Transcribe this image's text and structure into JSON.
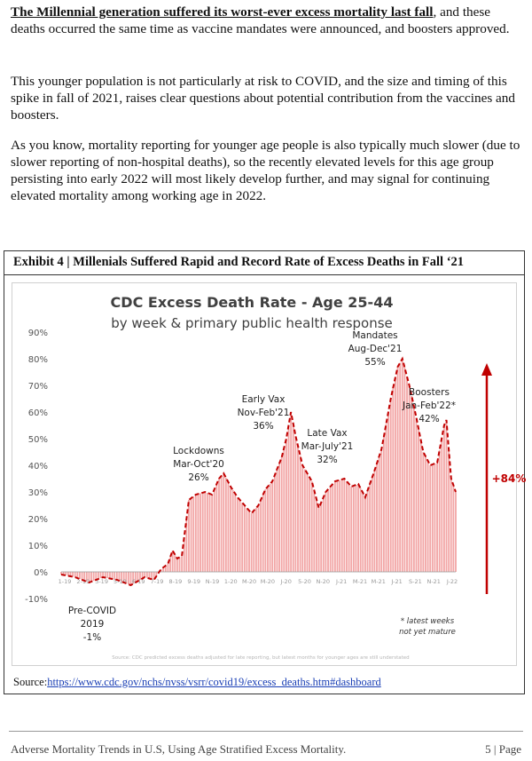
{
  "paragraphs": {
    "p1_lead": "The Millennial generation suffered its worst-ever excess mortality last fall",
    "p1_rest": ", and these deaths occurred the same time as vaccine mandates were announced, and boosters approved.",
    "p2": "This younger population is not particularly at risk to COVID, and the size and timing of this spike in fall of 2021, raises clear questions about potential contribution from the vaccines and boosters.",
    "p3": "As you know, mortality reporting for younger age people is also typically much slower (due to slower reporting of non-hospital deaths), so the recently elevated levels for this age group persisting into early 2022 will most likely develop further, and may signal for continuing elevated mortality among working age in 2022."
  },
  "exhibit": {
    "title": "Exhibit 4 | Millenials Suffered Rapid and Record Rate of Excess Deaths in Fall ‘21",
    "source_label": "Source:",
    "source_url": "https://www.cdc.gov/nchs/nvss/vsrr/covid19/excess_deaths.htm#dashboard"
  },
  "chart_data": {
    "type": "bar",
    "title": "CDC Excess Death Rate - Age 25-44",
    "subtitle": "by week & primary public health response",
    "xlabel": "",
    "ylabel": "",
    "ylim": [
      -10,
      90
    ],
    "yticks": [
      "90%",
      "80%",
      "70%",
      "60%",
      "50%",
      "40%",
      "30%",
      "20%",
      "10%",
      "0%",
      "-10%"
    ],
    "ytick_values": [
      90,
      80,
      70,
      60,
      50,
      40,
      30,
      20,
      10,
      0,
      -10
    ],
    "xtick_labels": [
      "1-19",
      "2-19",
      "3-19",
      "5-19",
      "6-19",
      "7-19",
      "8-19",
      "9-19",
      "N-19",
      "1-20",
      "M-20",
      "M-20",
      "J-20",
      "5-20",
      "N-20",
      "J-21",
      "M-21",
      "M-21",
      "J-21",
      "S-21",
      "N-21",
      "J-22"
    ],
    "grid": false,
    "bar_color": "#f2a6a6",
    "line_color": "#c00000",
    "x_weeks": 170,
    "anchors": [
      [
        0,
        -1
      ],
      [
        6,
        -2
      ],
      [
        12,
        -4
      ],
      [
        18,
        -2
      ],
      [
        24,
        -3
      ],
      [
        30,
        -5
      ],
      [
        36,
        -2
      ],
      [
        40,
        -3
      ],
      [
        43,
        1
      ],
      [
        46,
        3
      ],
      [
        48,
        8
      ],
      [
        50,
        5
      ],
      [
        52,
        6
      ],
      [
        55,
        27
      ],
      [
        58,
        29
      ],
      [
        62,
        30
      ],
      [
        65,
        29
      ],
      [
        68,
        35
      ],
      [
        70,
        37
      ],
      [
        73,
        32
      ],
      [
        76,
        28
      ],
      [
        79,
        25
      ],
      [
        82,
        22
      ],
      [
        85,
        25
      ],
      [
        88,
        31
      ],
      [
        91,
        34
      ],
      [
        95,
        43
      ],
      [
        97,
        50
      ],
      [
        99,
        60
      ],
      [
        101,
        51
      ],
      [
        104,
        40
      ],
      [
        108,
        34
      ],
      [
        111,
        24
      ],
      [
        114,
        30
      ],
      [
        118,
        34
      ],
      [
        122,
        35
      ],
      [
        125,
        32
      ],
      [
        128,
        33
      ],
      [
        131,
        28
      ],
      [
        135,
        38
      ],
      [
        138,
        46
      ],
      [
        142,
        65
      ],
      [
        145,
        77
      ],
      [
        147,
        80
      ],
      [
        150,
        70
      ],
      [
        153,
        58
      ],
      [
        156,
        45
      ],
      [
        159,
        40
      ],
      [
        162,
        41
      ],
      [
        165,
        55
      ],
      [
        166,
        57
      ],
      [
        168,
        35
      ],
      [
        170,
        30
      ]
    ],
    "annotations": [
      {
        "lines": [
          "Lockdowns",
          "Mar-Oct'20",
          "26%"
        ]
      },
      {
        "lines": [
          "Early Vax",
          "Nov-Feb'21",
          "36%"
        ]
      },
      {
        "lines": [
          "Late Vax",
          "Mar-July'21",
          "32%"
        ]
      },
      {
        "lines": [
          "Mandates",
          "Aug-Dec'21",
          "55%"
        ]
      },
      {
        "lines": [
          "Boosters",
          "Jan-Feb'22*",
          "42%"
        ]
      }
    ],
    "pre_covid": {
      "lines": [
        "Pre-COVID",
        "2019",
        "-1%"
      ]
    },
    "increase_label": "+84%",
    "note_lines": [
      "* latest weeks",
      "not yet mature"
    ],
    "source_note": "Source: CDC predicted excess deaths adjusted for late reporting, but latest months for younger ages are still understated"
  },
  "footer": {
    "left": "Adverse Mortality Trends in U.S, Using Age Stratified Excess Mortality.",
    "right": "5 | Page"
  }
}
